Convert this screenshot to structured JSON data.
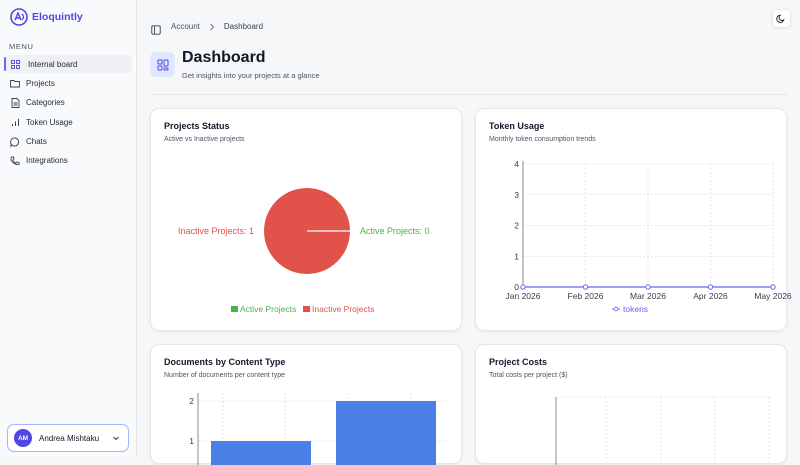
{
  "app": {
    "name": "Eloquintly"
  },
  "sidebar": {
    "menu_label": "MENU",
    "items": [
      {
        "label": "Internal board",
        "icon": "grid-icon",
        "active": true
      },
      {
        "label": "Projects",
        "icon": "folder-icon"
      },
      {
        "label": "Categories",
        "icon": "file-icon"
      },
      {
        "label": "Token Usage",
        "icon": "bar-chart-icon"
      },
      {
        "label": "Chats",
        "icon": "chat-icon"
      },
      {
        "label": "Integrations",
        "icon": "plug-icon"
      }
    ],
    "user": {
      "initials": "AM",
      "name": "Andrea Mishtaku"
    }
  },
  "breadcrumb": {
    "root": "Account",
    "current": "Dashboard"
  },
  "page": {
    "title": "Dashboard",
    "subtitle": "Get insights into your projects at a glance"
  },
  "colors": {
    "accent": "#4f46e5",
    "active": "#4caf50",
    "inactive": "#e0524a",
    "bar": "#4a7fe8",
    "line": "#6366f1"
  },
  "cards": {
    "projects_status": {
      "title": "Projects Status",
      "subtitle": "Active vs Inactive projects"
    },
    "token_usage": {
      "title": "Token Usage",
      "subtitle": "Monthly token consumption trends"
    },
    "documents": {
      "title": "Documents by Content Type",
      "subtitle": "Number of documents per content type"
    },
    "costs": {
      "title": "Project Costs",
      "subtitle": "Total costs per project ($)"
    }
  },
  "chart_data": [
    {
      "type": "pie",
      "categories": [
        "Active Projects",
        "Inactive Projects"
      ],
      "values": [
        0,
        1
      ],
      "labels": [
        "Active Projects: 0",
        "Inactive Projects: 1"
      ],
      "legend": "bottom"
    },
    {
      "type": "line",
      "x": [
        "Jan 2026",
        "Feb 2026",
        "Mar 2026",
        "Apr 2026",
        "May 2026"
      ],
      "series": [
        {
          "name": "tokens",
          "values": [
            0,
            0,
            0,
            0,
            0
          ]
        }
      ],
      "ylim": [
        0,
        4
      ],
      "yticks": [
        "0",
        "1",
        "2",
        "3",
        "4"
      ],
      "grid": true,
      "legend": "bottom"
    },
    {
      "type": "bar",
      "categories": [
        "",
        ""
      ],
      "values": [
        1,
        2
      ],
      "yticks": [
        "1",
        "2"
      ],
      "grid": true
    },
    {
      "type": "bar",
      "categories": [],
      "values": [],
      "grid": true
    }
  ]
}
